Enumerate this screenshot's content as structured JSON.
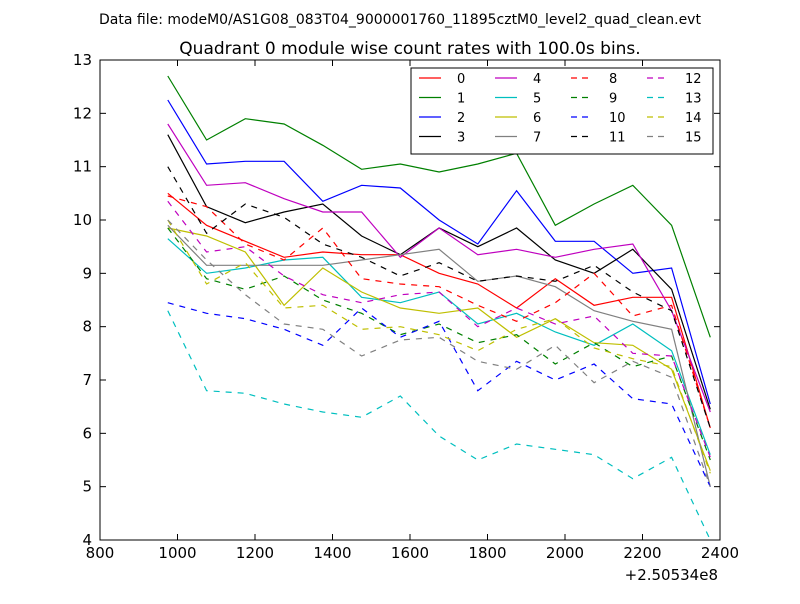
{
  "chart_data": {
    "type": "line",
    "suptitle": "Data file: modeM0/AS1G08_083T04_9000001760_11895cztM0_level2_quad_clean.evt",
    "title": "Quadrant 0 module wise count rates with 100.0s bins.",
    "xlabel": "",
    "ylabel": "",
    "x_offset_label": "+2.50534e8",
    "xlim": [
      800,
      2400
    ],
    "ylim": [
      4,
      13
    ],
    "xticks": [
      800,
      1000,
      1200,
      1400,
      1600,
      1800,
      2000,
      2200,
      2400
    ],
    "yticks": [
      4,
      5,
      6,
      7,
      8,
      9,
      10,
      11,
      12,
      13
    ],
    "grid": false,
    "legend_position": "top-right",
    "legend_columns": 4,
    "x": [
      975,
      1075,
      1175,
      1275,
      1375,
      1475,
      1575,
      1675,
      1775,
      1875,
      1975,
      2075,
      2175,
      2275,
      2375
    ],
    "series": [
      {
        "name": "0",
        "color": "#ff0000",
        "dash": "solid",
        "values": [
          10.5,
          9.9,
          9.6,
          9.3,
          9.4,
          9.35,
          9.35,
          9.0,
          8.8,
          8.35,
          8.9,
          8.4,
          8.55,
          8.55,
          6.1
        ]
      },
      {
        "name": "1",
        "color": "#008000",
        "dash": "solid",
        "values": [
          12.7,
          11.5,
          11.9,
          11.8,
          11.4,
          10.95,
          11.05,
          10.9,
          11.05,
          11.25,
          9.9,
          10.3,
          10.65,
          9.9,
          7.8
        ]
      },
      {
        "name": "2",
        "color": "#0000ff",
        "dash": "solid",
        "values": [
          12.25,
          11.05,
          11.1,
          11.1,
          10.35,
          10.65,
          10.6,
          10.0,
          9.55,
          10.55,
          9.6,
          9.6,
          9.0,
          9.1,
          6.55
        ]
      },
      {
        "name": "3",
        "color": "#000000",
        "dash": "solid",
        "values": [
          11.6,
          10.25,
          9.95,
          10.15,
          10.3,
          9.7,
          9.35,
          9.85,
          9.5,
          9.85,
          9.25,
          9.0,
          9.45,
          8.7,
          6.45
        ]
      },
      {
        "name": "4",
        "color": "#bf00bf",
        "dash": "solid",
        "values": [
          11.8,
          10.65,
          10.7,
          10.4,
          10.15,
          10.15,
          9.3,
          9.85,
          9.35,
          9.45,
          9.3,
          9.45,
          9.55,
          8.3,
          6.4
        ]
      },
      {
        "name": "5",
        "color": "#00bfbf",
        "dash": "solid",
        "values": [
          9.65,
          9.0,
          9.1,
          9.25,
          9.3,
          8.55,
          8.45,
          8.65,
          8.05,
          8.25,
          7.9,
          7.65,
          8.05,
          7.55,
          5.6
        ]
      },
      {
        "name": "6",
        "color": "#bfbf00",
        "dash": "solid",
        "values": [
          9.85,
          9.7,
          9.4,
          8.4,
          9.1,
          8.65,
          8.35,
          8.25,
          8.35,
          7.8,
          8.15,
          7.7,
          7.65,
          7.2,
          5.3
        ]
      },
      {
        "name": "7",
        "color": "#808080",
        "dash": "solid",
        "values": [
          9.9,
          9.15,
          9.15,
          9.15,
          9.15,
          9.25,
          9.35,
          9.45,
          8.85,
          8.95,
          8.75,
          8.3,
          8.1,
          7.95,
          5.0
        ]
      },
      {
        "name": "8",
        "color": "#ff0000",
        "dash": "dashed",
        "values": [
          10.45,
          10.25,
          9.55,
          9.25,
          9.85,
          8.9,
          8.8,
          8.75,
          8.4,
          8.1,
          8.45,
          9.0,
          8.2,
          8.4,
          6.1
        ]
      },
      {
        "name": "9",
        "color": "#008000",
        "dash": "dashed",
        "values": [
          9.85,
          8.9,
          8.7,
          8.95,
          8.5,
          8.25,
          7.85,
          8.05,
          7.7,
          7.85,
          7.3,
          7.7,
          7.25,
          7.45,
          5.5
        ]
      },
      {
        "name": "10",
        "color": "#0000ff",
        "dash": "dashed",
        "values": [
          8.45,
          8.25,
          8.15,
          7.95,
          7.65,
          8.35,
          7.8,
          8.1,
          6.8,
          7.35,
          7.0,
          7.3,
          6.65,
          6.55,
          5.0
        ]
      },
      {
        "name": "11",
        "color": "#000000",
        "dash": "dashed",
        "values": [
          11.0,
          9.75,
          10.3,
          10.05,
          9.55,
          9.3,
          8.95,
          9.2,
          8.85,
          8.95,
          8.85,
          9.15,
          8.65,
          8.3,
          6.1
        ]
      },
      {
        "name": "12",
        "color": "#bf00bf",
        "dash": "dashed",
        "values": [
          10.35,
          9.4,
          9.5,
          8.95,
          8.6,
          8.45,
          8.6,
          8.65,
          8.0,
          8.35,
          8.05,
          8.2,
          7.5,
          7.45,
          5.55
        ]
      },
      {
        "name": "13",
        "color": "#00bfbf",
        "dash": "dashed",
        "values": [
          8.3,
          6.8,
          6.75,
          6.55,
          6.4,
          6.3,
          6.7,
          5.95,
          5.5,
          5.8,
          5.7,
          5.6,
          5.15,
          5.55,
          4.0
        ]
      },
      {
        "name": "14",
        "color": "#bfbf00",
        "dash": "dashed",
        "values": [
          10.0,
          8.8,
          9.2,
          8.35,
          8.4,
          7.95,
          8.0,
          7.85,
          7.55,
          7.95,
          8.15,
          7.6,
          7.4,
          7.25,
          5.25
        ]
      },
      {
        "name": "15",
        "color": "#808080",
        "dash": "dashed",
        "values": [
          10.0,
          9.25,
          8.6,
          8.05,
          7.95,
          7.45,
          7.75,
          7.8,
          7.35,
          7.2,
          7.65,
          6.95,
          7.35,
          7.05,
          5.0
        ]
      }
    ]
  }
}
